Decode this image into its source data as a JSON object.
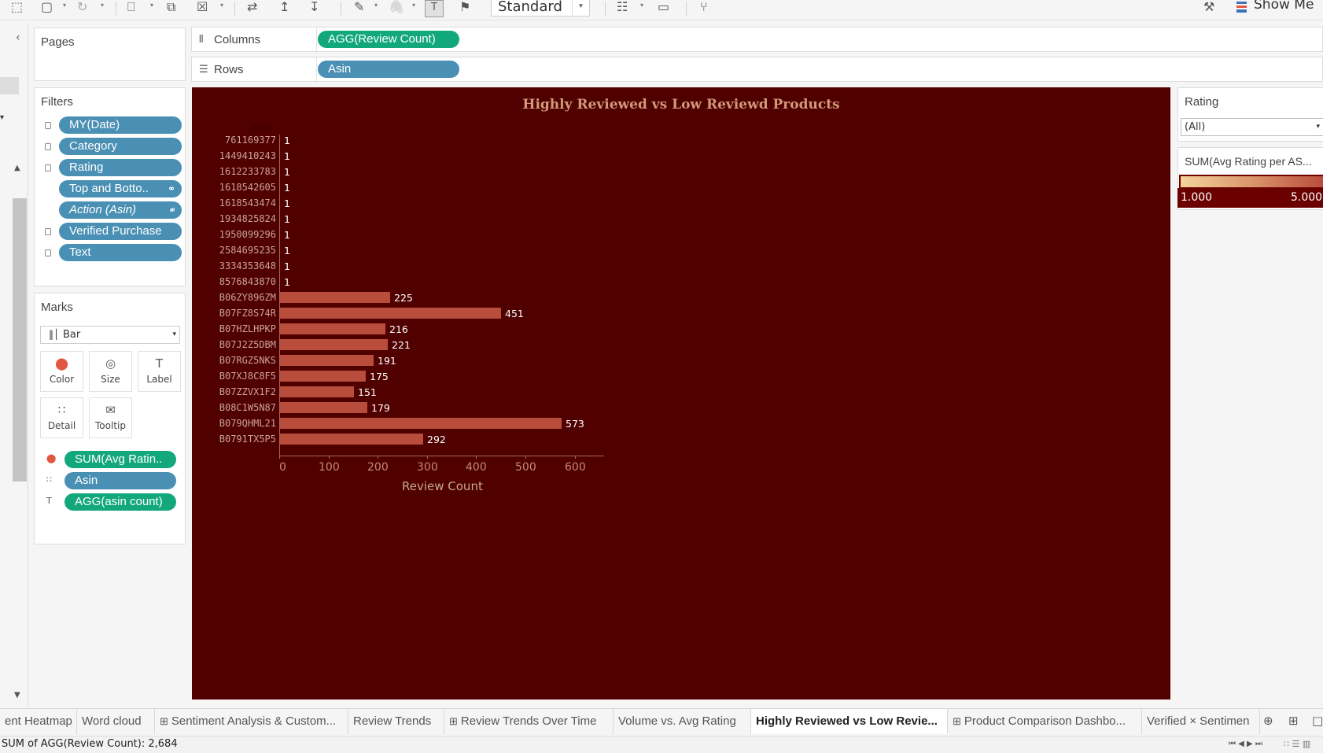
{
  "toolbar": {
    "fit_value": "Standard",
    "show_me": "Show Me"
  },
  "pages": {
    "title": "Pages"
  },
  "filters": {
    "title": "Filters",
    "items": [
      {
        "label": "MY(Date)",
        "linked": false,
        "italic": false
      },
      {
        "label": "Category",
        "linked": false,
        "italic": false
      },
      {
        "label": "Rating",
        "linked": false,
        "italic": false
      },
      {
        "label": "Top and Botto..",
        "linked": true,
        "italic": false
      },
      {
        "label": "Action (Asin)",
        "linked": true,
        "italic": true
      },
      {
        "label": "Verified Purchase",
        "linked": false,
        "italic": false
      },
      {
        "label": "Text",
        "linked": false,
        "italic": false
      }
    ]
  },
  "marks": {
    "title": "Marks",
    "type": "Bar",
    "buttons": [
      "Color",
      "Size",
      "Label",
      "Detail",
      "Tooltip"
    ],
    "fields": [
      {
        "label": "SUM(Avg Ratin..",
        "color": "green",
        "icon": "color-icon"
      },
      {
        "label": "Asin",
        "color": "blue",
        "icon": "detail-icon"
      },
      {
        "label": "AGG(asin count)",
        "color": "green",
        "icon": "label-icon"
      }
    ]
  },
  "shelves": {
    "columns_label": "Columns",
    "columns_pill": "AGG(Review Count)",
    "rows_label": "Rows",
    "rows_pill": "Asin"
  },
  "legend": {
    "rating_title": "Rating",
    "rating_value": "(All)",
    "color_title": "SUM(Avg Rating per AS...",
    "color_min": "1.000",
    "color_max": "5.000",
    "gradient_colors": [
      "#f4d39b",
      "#d9946a",
      "#b8483a"
    ]
  },
  "chart_data": {
    "type": "bar",
    "orientation": "horizontal",
    "title": "Highly Reviewed vs Low Reviewd Products",
    "row_header": "Asin",
    "xlabel": "Review Count",
    "xticks": [
      0,
      100,
      200,
      300,
      400,
      500,
      600
    ],
    "xlim": [
      0,
      660
    ],
    "categories": [
      "761169377",
      "1449410243",
      "1612233783",
      "1618542605",
      "1618543474",
      "1934825824",
      "1950099296",
      "2584695235",
      "3334353648",
      "8576843870",
      "B06ZY896ZM",
      "B07FZ8S74R",
      "B07HZLHPKP",
      "B07J2Z5DBM",
      "B07RGZ5NKS",
      "B07XJ8C8F5",
      "B07ZZVX1F2",
      "B08C1W5N87",
      "B079QHML21",
      "B0791TX5P5"
    ],
    "values": [
      1,
      1,
      1,
      1,
      1,
      1,
      1,
      1,
      1,
      1,
      225,
      451,
      216,
      221,
      191,
      175,
      151,
      179,
      573,
      292
    ],
    "bar_color": "#b84d3b",
    "background": "#510000"
  },
  "tabs": [
    {
      "label": "ent Heatmap",
      "icon": false,
      "active": false
    },
    {
      "label": "Word cloud",
      "icon": false,
      "active": false
    },
    {
      "label": "Sentiment Analysis & Custom...",
      "icon": true,
      "active": false
    },
    {
      "label": "Review Trends",
      "icon": false,
      "active": false
    },
    {
      "label": "Review Trends Over Time",
      "icon": true,
      "active": false
    },
    {
      "label": "Volume vs. Avg Rating",
      "icon": false,
      "active": false
    },
    {
      "label": "Highly Reviewed vs Low Revie...",
      "icon": false,
      "active": true
    },
    {
      "label": "Product Comparison Dashbo...",
      "icon": true,
      "active": false
    },
    {
      "label": "Verified × Sentimen",
      "icon": false,
      "active": false
    }
  ],
  "status": {
    "text": "SUM of AGG(Review Count): 2,684"
  }
}
